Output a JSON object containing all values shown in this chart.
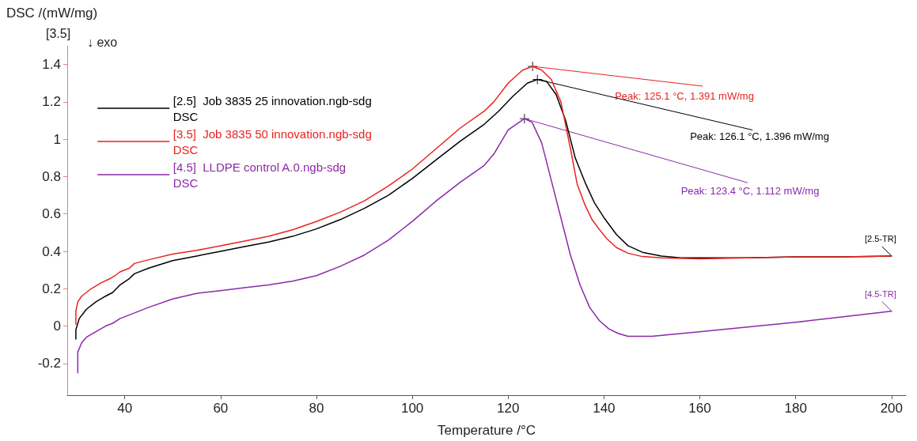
{
  "chart_data": {
    "type": "line",
    "xlabel": "Temperature /°C",
    "ylabel": "DSC /(mW/mg)",
    "xlim": [
      28,
      203
    ],
    "ylim": [
      -0.37,
      1.5
    ],
    "xticks": [
      40,
      60,
      80,
      100,
      120,
      140,
      160,
      180,
      200
    ],
    "yticks": [
      -0.2,
      0.0,
      0.2,
      0.4,
      0.6,
      0.8,
      1.0,
      1.2,
      1.4
    ],
    "grid": false,
    "legend": "top left",
    "marker": "none",
    "line_style": "solid",
    "annotations": [
      "[3.5]",
      "↓ exo",
      {
        "text": "Peak: 125.1 °C, 1.391 mW/mg",
        "x": 125.1,
        "y": 1.39
      },
      {
        "text": "Peak: 126.1 °C, 1.396 mW/mg",
        "x": 126.1,
        "y": 1.32
      },
      {
        "text": "Peak: 123.4 °C, 1.112 mW/mg",
        "x": 123.4,
        "y": 1.11
      },
      {
        "text": "[2.5-TR]",
        "x": 200,
        "y": 0.375
      },
      {
        "text": "[4.5-TR]",
        "x": 200,
        "y": 0.08
      }
    ],
    "series": [
      {
        "name": "[2.5]  Job 3835 25 innovation.ngb-sdg\nDSC",
        "color": "#000000",
        "x": [
          29.8,
          29.8,
          30.5,
          32,
          34,
          36,
          37.5,
          39,
          41,
          42,
          45,
          50,
          55,
          60,
          65,
          70,
          75,
          80,
          85,
          90,
          95,
          100,
          105,
          110,
          115,
          118,
          121,
          124,
          126.1,
          128,
          130,
          132,
          134,
          136.2,
          138,
          140,
          142.6,
          145,
          148,
          152,
          156,
          160,
          170,
          180,
          190,
          200
        ],
        "values": [
          -0.07,
          -0.02,
          0.04,
          0.09,
          0.13,
          0.16,
          0.18,
          0.22,
          0.255,
          0.28,
          0.31,
          0.35,
          0.375,
          0.4,
          0.425,
          0.45,
          0.48,
          0.52,
          0.57,
          0.63,
          0.7,
          0.79,
          0.89,
          0.99,
          1.08,
          1.15,
          1.23,
          1.3,
          1.32,
          1.31,
          1.24,
          1.1,
          0.9,
          0.76,
          0.66,
          0.58,
          0.49,
          0.43,
          0.395,
          0.375,
          0.365,
          0.365,
          0.365,
          0.37,
          0.37,
          0.375
        ]
      },
      {
        "name": "[3.5]  Job 3835 50 innovation.ngb-sdg\nDSC",
        "color": "#e8231f",
        "x": [
          29.8,
          29.8,
          30.2,
          31,
          33,
          35,
          37,
          38,
          39,
          41,
          42,
          45,
          50,
          55,
          60,
          65,
          70,
          75,
          80,
          85,
          90,
          95,
          100,
          105,
          110,
          115,
          117,
          120,
          123,
          125.1,
          127,
          129,
          131,
          133,
          134.4,
          136,
          137.5,
          138.8,
          140.5,
          142.6,
          145,
          148,
          152,
          160,
          170,
          180,
          190,
          200
        ],
        "values": [
          0.01,
          0.08,
          0.13,
          0.16,
          0.2,
          0.23,
          0.255,
          0.27,
          0.29,
          0.31,
          0.335,
          0.355,
          0.385,
          0.405,
          0.43,
          0.455,
          0.48,
          0.515,
          0.56,
          0.61,
          0.67,
          0.75,
          0.84,
          0.95,
          1.06,
          1.15,
          1.2,
          1.3,
          1.37,
          1.39,
          1.37,
          1.32,
          1.2,
          0.95,
          0.76,
          0.65,
          0.57,
          0.525,
          0.47,
          0.42,
          0.39,
          0.372,
          0.365,
          0.36,
          0.365,
          0.37,
          0.37,
          0.375
        ]
      },
      {
        "name": "[4.5]  LLDPE control A.0.ngb-sdg\nDSC",
        "color": "#8b2aa8",
        "x": [
          30.2,
          30.2,
          31,
          32,
          34,
          36,
          37.5,
          39,
          41,
          45,
          50,
          55,
          60,
          65,
          70,
          75,
          80,
          85,
          90,
          95,
          100,
          105,
          110,
          115,
          117,
          120,
          123.4,
          125,
          127,
          129,
          131,
          133,
          135,
          137,
          139,
          141,
          143,
          145,
          150,
          160,
          170,
          180,
          190,
          200
        ],
        "values": [
          -0.25,
          -0.14,
          -0.09,
          -0.06,
          -0.03,
          0.0,
          0.015,
          0.04,
          0.06,
          0.1,
          0.145,
          0.175,
          0.19,
          0.205,
          0.22,
          0.24,
          0.27,
          0.32,
          0.38,
          0.46,
          0.56,
          0.67,
          0.77,
          0.86,
          0.92,
          1.05,
          1.11,
          1.09,
          0.98,
          0.78,
          0.58,
          0.38,
          0.22,
          0.1,
          0.03,
          -0.015,
          -0.04,
          -0.055,
          -0.055,
          -0.03,
          -0.005,
          0.02,
          0.05,
          0.08
        ]
      }
    ]
  }
}
